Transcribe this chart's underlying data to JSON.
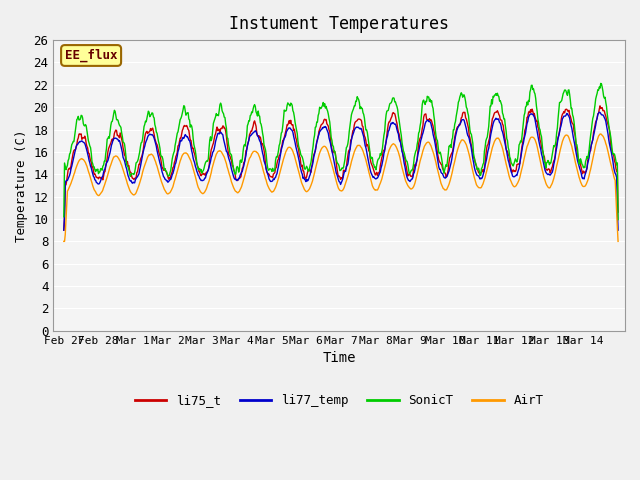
{
  "title": "Instument Temperatures",
  "xlabel": "Time",
  "ylabel": "Temperature (C)",
  "ylim": [
    0,
    26
  ],
  "n_days": 16,
  "annotation": "EE_flux",
  "legend_labels": [
    "li75_t",
    "li77_temp",
    "SonicT",
    "AirT"
  ],
  "line_colors": [
    "#cc0000",
    "#0000cc",
    "#00cc00",
    "#ff9900"
  ],
  "fig_bg": "#f0f0f0",
  "plot_bg": "#e8e8e8",
  "x_tick_labels": [
    "Feb 27",
    "Feb 28",
    "Mar 1",
    "Mar 2",
    "Mar 3",
    "Mar 4",
    "Mar 5",
    "Mar 6",
    "Mar 7",
    "Mar 8",
    "Mar 9",
    "Mar 10",
    "Mar 11",
    "Mar 12",
    "Mar 13",
    "Mar 14"
  ],
  "grid_color": "#ffffff"
}
